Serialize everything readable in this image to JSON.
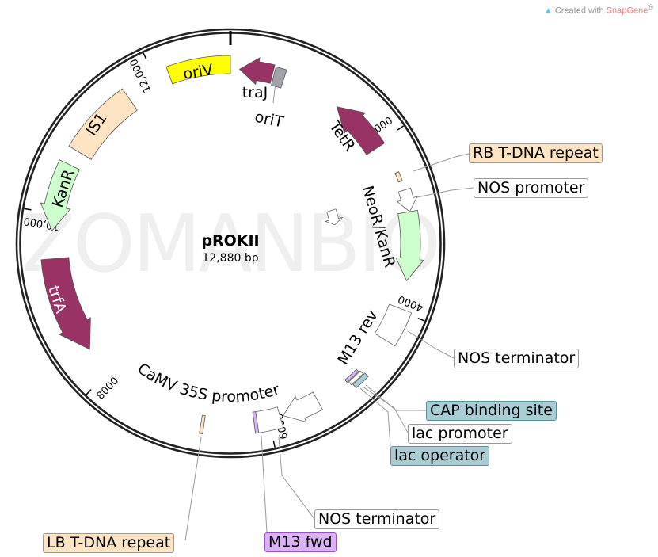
{
  "branding": {
    "prefix": "Created with ",
    "name": "SnapGene",
    "suffix": "®",
    "icon": "snapgene-logo-icon"
  },
  "watermark": "ZOMANBIO",
  "plasmid": {
    "name": "pROKII",
    "size": "12,880 bp",
    "length_bp": 12880
  },
  "ticks": [
    "2000",
    "4000",
    "6000",
    "8000",
    "10,000",
    "12,000"
  ],
  "colors": {
    "gene": "#993366",
    "marker": "#ccffcc",
    "misc": "#ffe4c4",
    "origin": "#ffff00",
    "oriT": "#a0a4aa",
    "protein_bind": "#a9cdd5",
    "primer": "#d9b3f5"
  },
  "features": {
    "oriV": "oriV",
    "traJ": "traJ",
    "oriT": "oriT",
    "TetR": "TetR",
    "NeoR_KanR": "NeoR/KanR",
    "KanR": "KanR",
    "IS1": "IS1",
    "trfA": "trfA",
    "M13_rev": "M13 rev",
    "CaMV": "CaMV 35S promoter"
  },
  "callouts": [
    {
      "label": "RB T-DNA repeat",
      "type": "misc"
    },
    {
      "label": "NOS promoter",
      "type": "plain"
    },
    {
      "label": "NOS terminator",
      "type": "plain"
    },
    {
      "label": "CAP binding site",
      "type": "protein_bind"
    },
    {
      "label": "lac promoter",
      "type": "plain"
    },
    {
      "label": "lac operator",
      "type": "protein_bind"
    },
    {
      "label": "NOS terminator",
      "type": "plain"
    },
    {
      "label": "M13 fwd",
      "type": "primer"
    },
    {
      "label": "LB T-DNA repeat",
      "type": "misc"
    }
  ]
}
